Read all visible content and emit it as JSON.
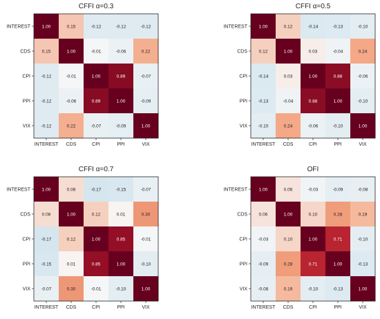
{
  "chart_data": [
    {
      "type": "heatmap",
      "title": "CFFI α=0.3",
      "row_labels": [
        "INTEREST",
        "CDS",
        "CPI",
        "PPI",
        "VIX"
      ],
      "col_labels": [
        "INTEREST",
        "CDS",
        "CPI",
        "PPI",
        "VIX"
      ],
      "values": [
        [
          1.0,
          0.15,
          -0.12,
          -0.12,
          -0.12
        ],
        [
          0.15,
          1.0,
          -0.01,
          -0.06,
          0.22
        ],
        [
          -0.12,
          -0.01,
          1.0,
          0.89,
          -0.07
        ],
        [
          -0.12,
          -0.06,
          0.89,
          1.0,
          -0.09
        ],
        [
          -0.12,
          0.22,
          -0.07,
          -0.09,
          1.0
        ]
      ],
      "value_range": [
        -1,
        1
      ]
    },
    {
      "type": "heatmap",
      "title": "CFFI α=0.5",
      "row_labels": [
        "INTEREST",
        "CDS",
        "CPI",
        "PPI",
        "VIX"
      ],
      "col_labels": [
        "INTEREST",
        "CDS",
        "CPI",
        "PPI",
        "VIX"
      ],
      "values": [
        [
          1.0,
          0.12,
          -0.14,
          -0.13,
          -0.1
        ],
        [
          0.12,
          1.0,
          0.03,
          -0.04,
          0.24
        ],
        [
          -0.14,
          0.03,
          1.0,
          0.88,
          -0.06
        ],
        [
          -0.13,
          -0.04,
          0.88,
          1.0,
          -0.1
        ],
        [
          -0.1,
          0.24,
          -0.06,
          -0.1,
          1.0
        ]
      ],
      "value_range": [
        -1,
        1
      ]
    },
    {
      "type": "heatmap",
      "title": "CFFI α=0.7",
      "row_labels": [
        "INTEREST",
        "CDS",
        "CPI",
        "PPI",
        "VIX"
      ],
      "col_labels": [
        "INTEREST",
        "CDS",
        "CPI",
        "PPI",
        "VIX"
      ],
      "values": [
        [
          1.0,
          0.08,
          -0.17,
          -0.15,
          -0.07
        ],
        [
          0.08,
          1.0,
          0.12,
          0.01,
          0.3
        ],
        [
          -0.17,
          0.12,
          1.0,
          0.85,
          -0.01
        ],
        [
          -0.15,
          0.01,
          0.85,
          1.0,
          -0.1
        ],
        [
          -0.07,
          0.3,
          -0.01,
          -0.1,
          1.0
        ]
      ],
      "value_range": [
        -1,
        1
      ]
    },
    {
      "type": "heatmap",
      "title": "OFI",
      "row_labels": [
        "INTEREST",
        "CDS",
        "CPI",
        "PPI",
        "VIX"
      ],
      "col_labels": [
        "INTEREST",
        "CDS",
        "CPI",
        "PPI",
        "VIX"
      ],
      "values": [
        [
          1.0,
          0.06,
          -0.03,
          -0.09,
          -0.08
        ],
        [
          0.06,
          1.0,
          0.1,
          0.28,
          0.19
        ],
        [
          -0.03,
          0.1,
          1.0,
          0.71,
          -0.1
        ],
        [
          -0.09,
          0.28,
          0.71,
          1.0,
          -0.13
        ],
        [
          -0.08,
          0.19,
          -0.1,
          -0.13,
          1.0
        ]
      ],
      "value_range": [
        -1,
        1
      ]
    }
  ],
  "colors": {
    "negative": "#2166ac",
    "neutral": "#f7f7f7",
    "positive": "#67001f",
    "frame": "#222222",
    "text_dark": "#222222",
    "text_light": "#ffffff"
  }
}
